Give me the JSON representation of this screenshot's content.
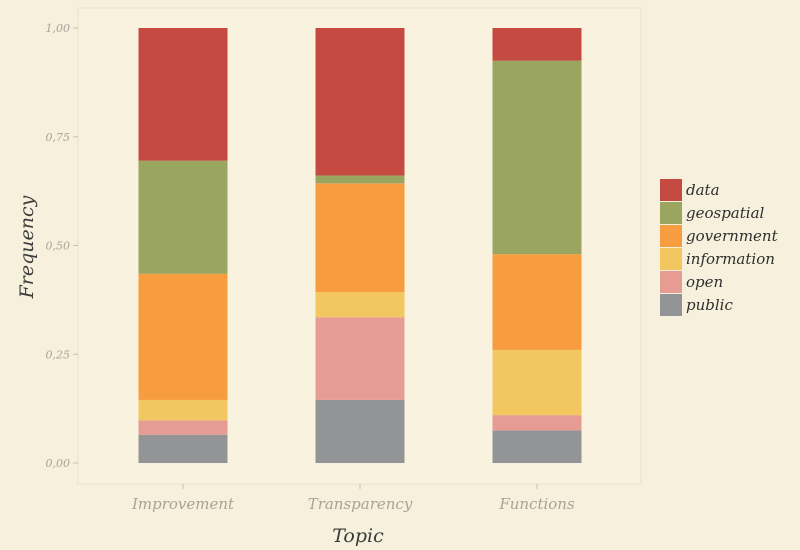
{
  "chart_data": {
    "type": "bar",
    "stacked": true,
    "categories": [
      "Improvement",
      "Transparency",
      "Functions"
    ],
    "series": [
      {
        "name": "public",
        "color": "#929495",
        "values": [
          0.065,
          0.145,
          0.075
        ]
      },
      {
        "name": "open",
        "color": "#e69c93",
        "values": [
          0.033,
          0.19,
          0.035
        ]
      },
      {
        "name": "information",
        "color": "#f2c760",
        "values": [
          0.047,
          0.058,
          0.15
        ]
      },
      {
        "name": "government",
        "color": "#f79c3f",
        "values": [
          0.29,
          0.25,
          0.22
        ]
      },
      {
        "name": "geospatial",
        "color": "#9aa65f",
        "values": [
          0.26,
          0.018,
          0.445
        ]
      },
      {
        "name": "data",
        "color": "#c54a42",
        "values": [
          0.305,
          0.339,
          0.075
        ]
      }
    ],
    "legend_order": [
      "data",
      "geospatial",
      "government",
      "information",
      "open",
      "public"
    ],
    "xlabel": "Topic",
    "ylabel": "Frequency",
    "ylim": [
      0,
      1
    ],
    "yticks": [
      0,
      0.25,
      0.5,
      0.75,
      1
    ],
    "ytick_labels": [
      "0,00",
      "0,25",
      "0,50",
      "0,75",
      "1,00"
    ],
    "grid": false,
    "legend_position": "right"
  }
}
